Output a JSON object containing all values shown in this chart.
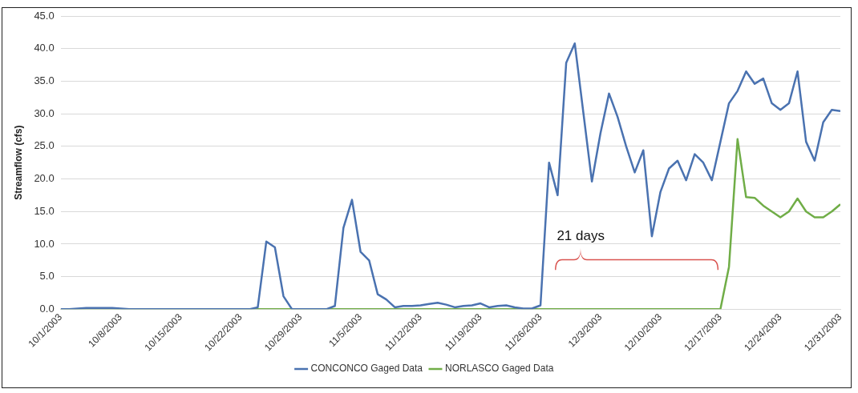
{
  "chart_data": {
    "type": "line",
    "ylabel": "Streamflow (cfs)",
    "annotations": [
      "21 days"
    ],
    "x": [
      "2003-10-01",
      "2003-10-02",
      "2003-10-03",
      "2003-10-04",
      "2003-10-05",
      "2003-10-06",
      "2003-10-07",
      "2003-10-08",
      "2003-10-09",
      "2003-10-10",
      "2003-10-11",
      "2003-10-12",
      "2003-10-13",
      "2003-10-14",
      "2003-10-15",
      "2003-10-16",
      "2003-10-17",
      "2003-10-18",
      "2003-10-19",
      "2003-10-20",
      "2003-10-21",
      "2003-10-22",
      "2003-10-23",
      "2003-10-24",
      "2003-10-25",
      "2003-10-26",
      "2003-10-27",
      "2003-10-28",
      "2003-10-29",
      "2003-10-30",
      "2003-10-31",
      "2003-11-01",
      "2003-11-02",
      "2003-11-03",
      "2003-11-04",
      "2003-11-05",
      "2003-11-06",
      "2003-11-07",
      "2003-11-08",
      "2003-11-09",
      "2003-11-10",
      "2003-11-11",
      "2003-11-12",
      "2003-11-13",
      "2003-11-14",
      "2003-11-15",
      "2003-11-16",
      "2003-11-17",
      "2003-11-18",
      "2003-11-19",
      "2003-11-20",
      "2003-11-21",
      "2003-11-22",
      "2003-11-23",
      "2003-11-24",
      "2003-11-25",
      "2003-11-26",
      "2003-11-27",
      "2003-11-28",
      "2003-11-29",
      "2003-11-30",
      "2003-12-01",
      "2003-12-02",
      "2003-12-03",
      "2003-12-04",
      "2003-12-05",
      "2003-12-06",
      "2003-12-07",
      "2003-12-08",
      "2003-12-09",
      "2003-12-10",
      "2003-12-11",
      "2003-12-12",
      "2003-12-13",
      "2003-12-14",
      "2003-12-15",
      "2003-12-16",
      "2003-12-17",
      "2003-12-18",
      "2003-12-19",
      "2003-12-20",
      "2003-12-21",
      "2003-12-22",
      "2003-12-23",
      "2003-12-24",
      "2003-12-25",
      "2003-12-26",
      "2003-12-27",
      "2003-12-28",
      "2003-12-29",
      "2003-12-30",
      "2003-12-31"
    ],
    "series": [
      {
        "name": "CONCONCO Gaged Data",
        "color": "#4a72b0",
        "values": [
          0,
          0,
          0.1,
          0.2,
          0.2,
          0.2,
          0.2,
          0.1,
          0,
          0,
          0,
          0,
          0,
          0,
          0,
          0,
          0,
          0,
          0,
          0,
          0,
          0,
          0,
          0.3,
          10.4,
          9.5,
          2.0,
          0,
          0,
          0,
          0,
          0,
          0.5,
          12.5,
          16.8,
          8.8,
          7.5,
          2.3,
          1.5,
          0.3,
          0.5,
          0.5,
          0.6,
          0.8,
          1.0,
          0.7,
          0.3,
          0.5,
          0.6,
          0.9,
          0.3,
          0.5,
          0.6,
          0.3,
          0.1,
          0.1,
          0.6,
          22.5,
          17.5,
          37.8,
          40.8,
          30.2,
          19.6,
          27.0,
          33.1,
          29.5,
          25.0,
          21.0,
          24.4,
          11.2,
          18.0,
          21.6,
          22.8,
          19.8,
          23.8,
          22.5,
          19.8,
          25.7,
          31.6,
          33.5,
          36.5,
          34.6,
          35.4,
          31.6,
          30.6,
          31.6,
          36.5,
          25.7,
          22.8,
          28.7,
          30.6,
          30.4
        ]
      },
      {
        "name": "NORLASCO Gaged Data",
        "color": "#70ad47",
        "values": [
          0,
          0,
          0,
          0,
          0,
          0,
          0,
          0,
          0,
          0,
          0,
          0,
          0,
          0,
          0,
          0,
          0,
          0,
          0,
          0,
          0,
          0,
          0,
          0,
          0,
          0,
          0,
          0,
          0,
          0,
          0,
          0,
          0,
          0,
          0,
          0,
          0,
          0,
          0,
          0,
          0,
          0,
          0,
          0,
          0,
          0,
          0,
          0,
          0,
          0,
          0,
          0,
          0,
          0,
          0,
          0,
          0,
          0,
          0,
          0,
          0,
          0,
          0,
          0,
          0,
          0,
          0,
          0,
          0,
          0,
          0,
          0,
          0,
          0,
          0,
          0,
          0,
          0,
          6.5,
          26.1,
          17.2,
          17.1,
          15.9,
          15.0,
          14.1,
          15.0,
          17.0,
          15.0,
          14.1,
          14.1,
          15.0,
          16.1
        ]
      }
    ],
    "xlim": [
      "2003-10-01",
      "2003-12-31"
    ],
    "xticks": [
      {
        "value": "2003-10-01",
        "label": "10/1/2003"
      },
      {
        "value": "2003-10-08",
        "label": "10/8/2003"
      },
      {
        "value": "2003-10-15",
        "label": "10/15/2003"
      },
      {
        "value": "2003-10-22",
        "label": "10/22/2003"
      },
      {
        "value": "2003-10-29",
        "label": "10/29/2003"
      },
      {
        "value": "2003-11-05",
        "label": "11/5/2003"
      },
      {
        "value": "2003-11-12",
        "label": "11/12/2003"
      },
      {
        "value": "2003-11-19",
        "label": "11/19/2003"
      },
      {
        "value": "2003-11-26",
        "label": "11/26/2003"
      },
      {
        "value": "2003-12-03",
        "label": "12/3/2003"
      },
      {
        "value": "2003-12-10",
        "label": "12/10/2003"
      },
      {
        "value": "2003-12-17",
        "label": "12/17/2003"
      },
      {
        "value": "2003-12-24",
        "label": "12/24/2003"
      },
      {
        "value": "2003-12-31",
        "label": "12/31/2003"
      }
    ],
    "ylim": [
      0,
      45
    ],
    "yticks": [
      {
        "value": 0,
        "label": "0.0"
      },
      {
        "value": 5,
        "label": "5.0"
      },
      {
        "value": 10,
        "label": "10.0"
      },
      {
        "value": 15,
        "label": "15.0"
      },
      {
        "value": 20,
        "label": "20.0"
      },
      {
        "value": 25,
        "label": "25.0"
      },
      {
        "value": 30,
        "label": "30.0"
      },
      {
        "value": 35,
        "label": "35.0"
      },
      {
        "value": 40,
        "label": "40.0"
      },
      {
        "value": 45,
        "label": "45.0"
      }
    ],
    "grid": "y",
    "legend": "bottom",
    "marker": "none",
    "line_style": "solid"
  }
}
